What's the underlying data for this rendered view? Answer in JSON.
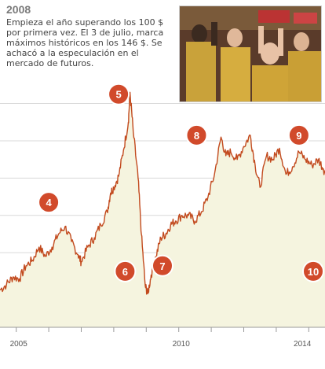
{
  "heading": "2008",
  "description": "Empieza el año superando los 100 $ por primera vez. El 3 de julio, marca máximos históricos en los 146 $. Se achacó a la especulación en el mercado de futuros.",
  "colors": {
    "line": "#c24a1e",
    "fill": "#f5f4df",
    "marker": "#d14a2b",
    "grid": "#d9d9d9"
  },
  "chart_data": {
    "type": "area",
    "x_tick_labels": [
      "2005",
      "2010",
      "2014"
    ],
    "x_ticks": [
      2005,
      2010,
      2014
    ],
    "xlim": [
      2004.5,
      2014.5
    ],
    "ylim": [
      20,
      155
    ],
    "ygrid": [
      40,
      60,
      80,
      100,
      120,
      140
    ],
    "grid": true,
    "series": [
      {
        "values": [
          [
            2004.5,
            40
          ],
          [
            2004.7,
            43
          ],
          [
            2004.9,
            47
          ],
          [
            2005.1,
            46
          ],
          [
            2005.3,
            53
          ],
          [
            2005.5,
            56
          ],
          [
            2005.7,
            63
          ],
          [
            2005.9,
            58
          ],
          [
            2006.1,
            63
          ],
          [
            2006.3,
            70
          ],
          [
            2006.5,
            74
          ],
          [
            2006.7,
            66
          ],
          [
            2006.9,
            59
          ],
          [
            2007.0,
            55
          ],
          [
            2007.2,
            63
          ],
          [
            2007.4,
            68
          ],
          [
            2007.6,
            75
          ],
          [
            2007.8,
            82
          ],
          [
            2007.9,
            92
          ],
          [
            2008.0,
            95
          ],
          [
            2008.15,
            101
          ],
          [
            2008.3,
            115
          ],
          [
            2008.45,
            130
          ],
          [
            2008.5,
            146
          ],
          [
            2008.6,
            125
          ],
          [
            2008.75,
            100
          ],
          [
            2008.85,
            70
          ],
          [
            2008.97,
            42
          ],
          [
            2009.05,
            38
          ],
          [
            2009.15,
            48
          ],
          [
            2009.3,
            58
          ],
          [
            2009.45,
            68
          ],
          [
            2009.6,
            70
          ],
          [
            2009.75,
            75
          ],
          [
            2009.9,
            77
          ],
          [
            2010.1,
            80
          ],
          [
            2010.3,
            80
          ],
          [
            2010.5,
            77
          ],
          [
            2010.7,
            82
          ],
          [
            2010.9,
            90
          ],
          [
            2011.1,
            102
          ],
          [
            2011.3,
            122
          ],
          [
            2011.45,
            112
          ],
          [
            2011.6,
            114
          ],
          [
            2011.8,
            110
          ],
          [
            2012.0,
            117
          ],
          [
            2012.2,
            123
          ],
          [
            2012.35,
            107
          ],
          [
            2012.5,
            95
          ],
          [
            2012.7,
            112
          ],
          [
            2012.9,
            110
          ],
          [
            2013.1,
            116
          ],
          [
            2013.3,
            102
          ],
          [
            2013.5,
            106
          ],
          [
            2013.7,
            114
          ],
          [
            2013.9,
            110
          ],
          [
            2014.1,
            107
          ],
          [
            2014.3,
            110
          ],
          [
            2014.45,
            105
          ],
          [
            2014.6,
            100
          ],
          [
            2014.75,
            88
          ],
          [
            2014.85,
            72
          ],
          [
            2014.93,
            60
          ]
        ]
      }
    ],
    "annotations": [
      {
        "label": "4",
        "x": 2006.0,
        "y": 87
      },
      {
        "label": "5",
        "x": 2008.15,
        "y": 145
      },
      {
        "label": "6",
        "x": 2008.35,
        "y": 50
      },
      {
        "label": "7",
        "x": 2009.5,
        "y": 53
      },
      {
        "label": "8",
        "x": 2010.55,
        "y": 123
      },
      {
        "label": "9",
        "x": 2013.7,
        "y": 123
      },
      {
        "label": "10",
        "x": 2014.85,
        "y": 50
      }
    ]
  }
}
